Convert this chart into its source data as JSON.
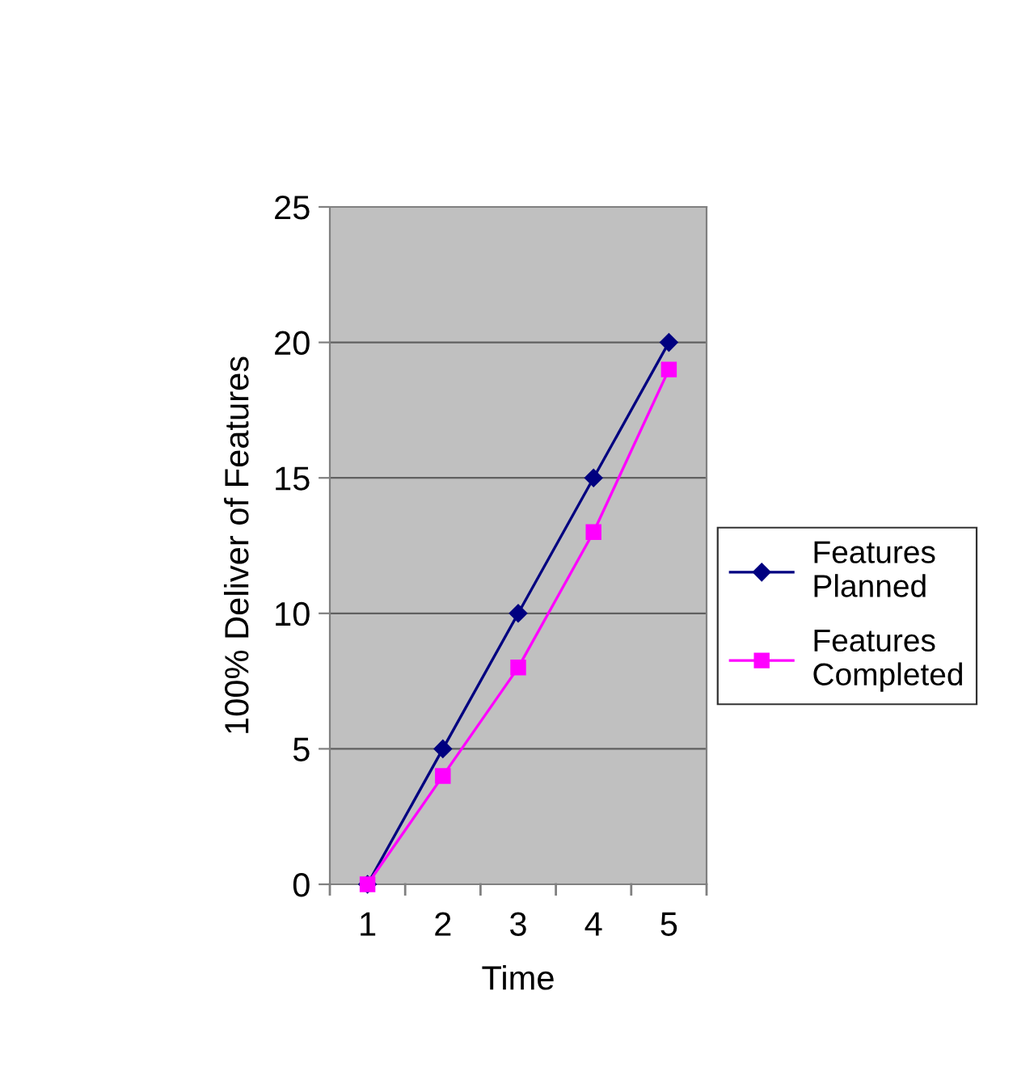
{
  "chart_data": {
    "type": "line",
    "xlabel": "Time",
    "ylabel": "100% Deliver of Features",
    "categories": [
      "1",
      "2",
      "3",
      "4",
      "5"
    ],
    "series": [
      {
        "name": "Features\nPlanned",
        "color": "#000080",
        "marker": "diamond",
        "values": [
          0,
          5,
          10,
          15,
          20
        ]
      },
      {
        "name": "Features\nCompleted",
        "color": "#ff00ff",
        "marker": "square",
        "values": [
          0,
          4,
          8,
          13,
          19
        ]
      }
    ],
    "ylim": [
      0,
      25
    ],
    "yticks": [
      0,
      5,
      10,
      15,
      20,
      25
    ],
    "grid": "y",
    "legend": "right",
    "line_style": "solid"
  }
}
